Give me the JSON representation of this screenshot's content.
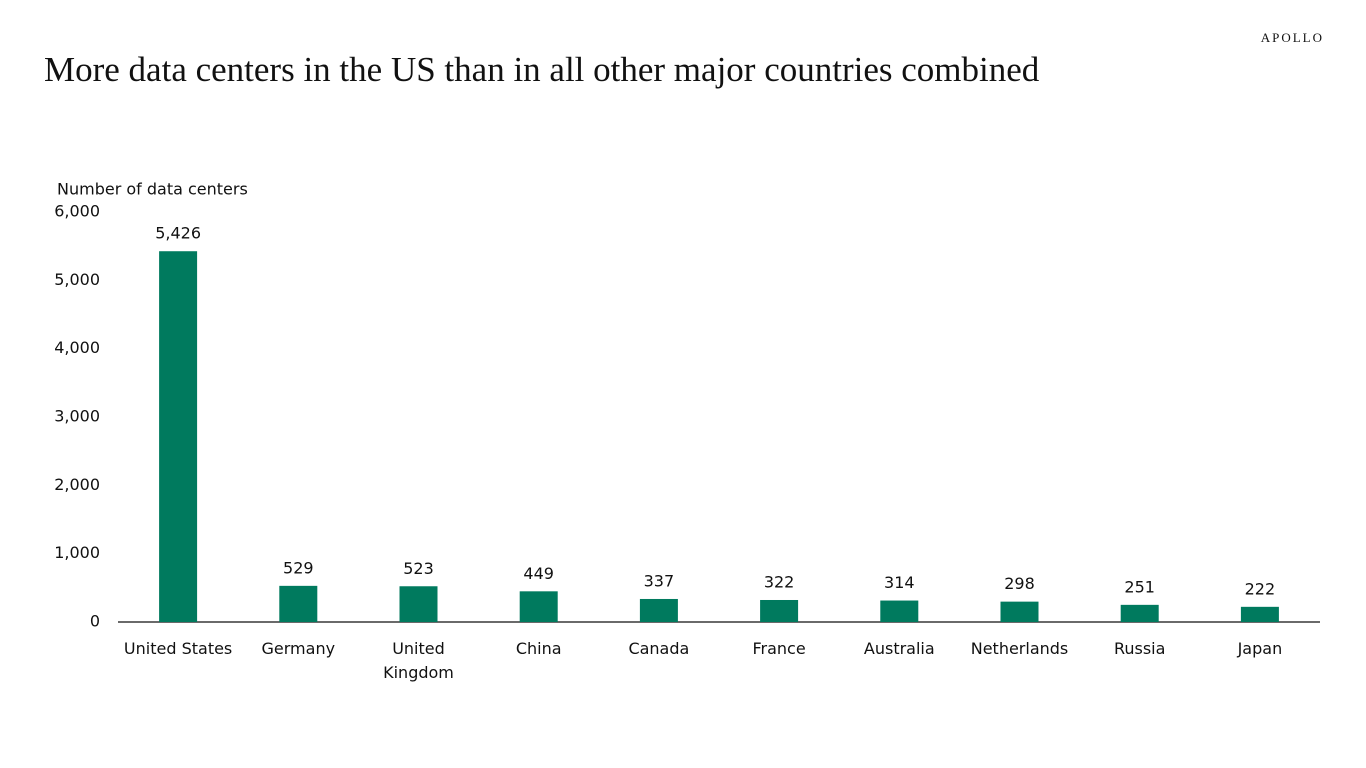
{
  "brand": "APOLLO",
  "chart_data": {
    "type": "bar",
    "title": "More data centers in the US than in all other major countries combined",
    "y_label": "Number of data centers",
    "categories": [
      "United States",
      "Germany",
      "United Kingdom",
      "China",
      "Canada",
      "France",
      "Australia",
      "Netherlands",
      "Russia",
      "Japan"
    ],
    "values": [
      5426,
      529,
      523,
      449,
      337,
      322,
      314,
      298,
      251,
      222
    ],
    "value_labels": [
      "5,426",
      "529",
      "523",
      "449",
      "337",
      "322",
      "314",
      "298",
      "251",
      "222"
    ],
    "color": "#007a5e",
    "ylim": [
      0,
      6000
    ],
    "yticks": [
      0,
      {
        "value": 1000,
        "label": "1,000"
      },
      {
        "value": 2000,
        "label": "2,000"
      },
      {
        "value": 3000,
        "label": "3,000"
      },
      {
        "value": 4000,
        "label": "4,000"
      },
      {
        "value": 5000,
        "label": "5,000"
      },
      {
        "value": 6000,
        "label": "6,000"
      }
    ],
    "grid": false
  }
}
